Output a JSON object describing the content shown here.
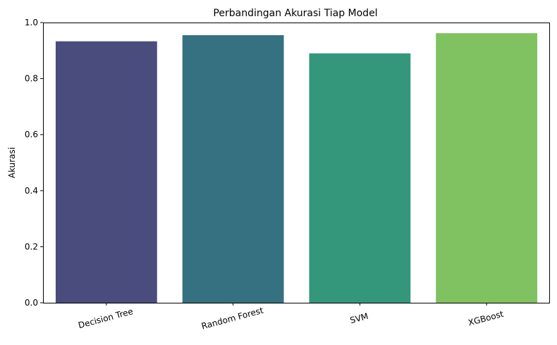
{
  "chart_data": {
    "type": "bar",
    "title": "Perbandingan Akurasi Tiap Model",
    "xlabel": "",
    "ylabel": "Akurasi",
    "categories": [
      "Decision Tree",
      "Random Forest",
      "SVM",
      "XGBoost"
    ],
    "values": [
      0.933,
      0.955,
      0.89,
      0.962
    ],
    "colors": [
      "#4a4c7e",
      "#357180",
      "#34977b",
      "#80c262"
    ],
    "ylim": [
      0,
      1.0
    ],
    "yticks": [
      0.0,
      0.2,
      0.4,
      0.6,
      0.8,
      1.0
    ],
    "ytick_labels": [
      "0.0",
      "0.2",
      "0.4",
      "0.6",
      "0.8",
      "1.0"
    ],
    "grid": false,
    "legend": "none"
  }
}
